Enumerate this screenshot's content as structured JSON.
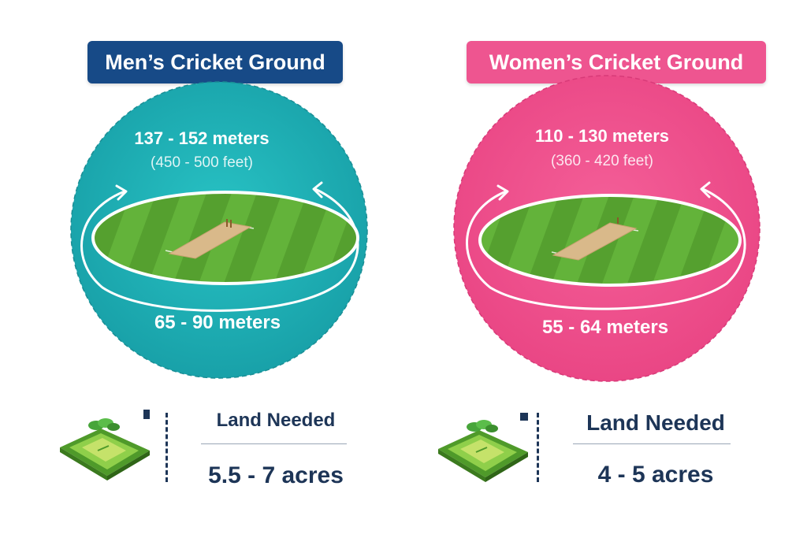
{
  "colors": {
    "men_accent": "#1fb3b8",
    "men_badge": "#174a87",
    "women_accent": "#f0528f",
    "women_badge": "#ee5590",
    "field_green": "#5fae34",
    "pitch": "#d9b98a",
    "text_dark": "#1d3557"
  },
  "men": {
    "title": "Men’s Cricket Ground",
    "boundary_meters": "137 - 152 meters",
    "boundary_feet": "(450 - 500 feet)",
    "width_meters": "65 - 90 meters",
    "land_label": "Land Needed",
    "land_value": "5.5 - 7 acres"
  },
  "women": {
    "title": "Women’s Cricket Ground",
    "boundary_meters": "110 - 130 meters",
    "boundary_feet": "(360 - 420 feet)",
    "width_meters": "55 - 64 meters",
    "land_label": "Land Needed",
    "land_value": "4 - 5 acres"
  },
  "icons": {
    "boundary_arrows": "curved-arrow-icon",
    "land": "field-plot-icon"
  }
}
